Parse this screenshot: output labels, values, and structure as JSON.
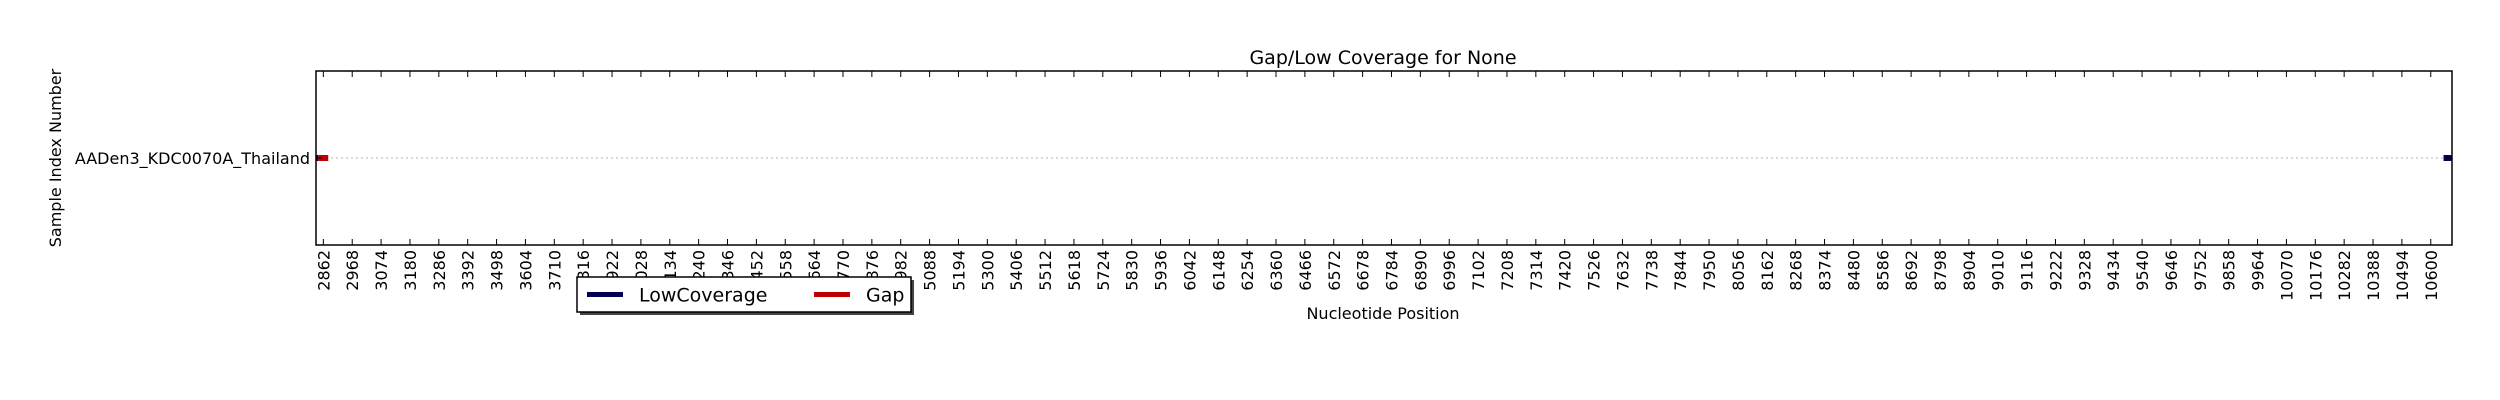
{
  "chart_data": {
    "type": "gantt",
    "title": "Gap/Low Coverage for None",
    "xlabel": "Nucleotide Position",
    "ylabel": "Sample Index Number",
    "xlim": [
      2835,
      10678
    ],
    "xticks": [
      2862,
      2968,
      3074,
      3180,
      3286,
      3392,
      3498,
      3604,
      3710,
      3816,
      3922,
      4028,
      4134,
      4240,
      4346,
      4452,
      4558,
      4664,
      4770,
      4876,
      4982,
      5088,
      5194,
      5300,
      5406,
      5512,
      5618,
      5724,
      5830,
      5936,
      6042,
      6148,
      6254,
      6360,
      6466,
      6572,
      6678,
      6784,
      6890,
      6996,
      7102,
      7208,
      7314,
      7420,
      7526,
      7632,
      7738,
      7844,
      7950,
      8056,
      8162,
      8268,
      8374,
      8480,
      8586,
      8692,
      8798,
      8904,
      9010,
      9116,
      9222,
      9328,
      9434,
      9540,
      9646,
      9752,
      9858,
      9964,
      10070,
      10176,
      10282,
      10388,
      10494,
      10600
    ],
    "grid": "horizontal-dotted",
    "legend_position": "lower-left",
    "samples": [
      "AADen3_KDC0070A_Thailand"
    ],
    "series": [
      {
        "name": "LowCoverage",
        "color": "#000055",
        "segments": [
          {
            "sample": 0,
            "start": 2835,
            "end": 2843
          },
          {
            "sample": 0,
            "start": 10647,
            "end": 10678
          }
        ]
      },
      {
        "name": "Gap",
        "color": "#c00000",
        "segments": [
          {
            "sample": 0,
            "start": 2843,
            "end": 2880
          }
        ]
      }
    ]
  }
}
